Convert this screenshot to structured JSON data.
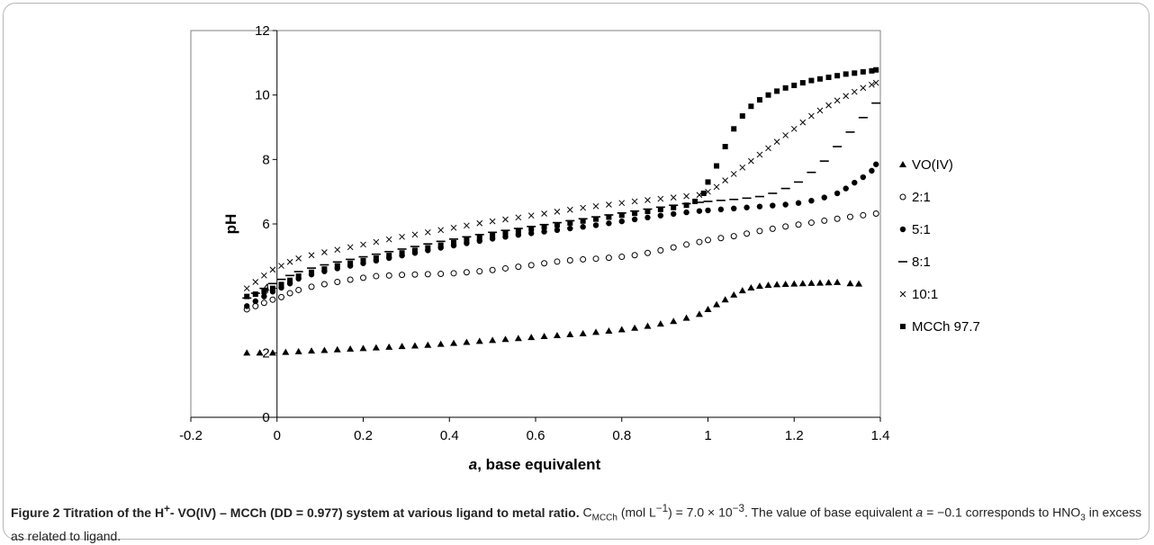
{
  "chart_data": {
    "type": "scatter",
    "xlabel_prefix": "a",
    "xlabel_rest": ", base equivalent",
    "ylabel": "pH",
    "xlim": [
      -0.2,
      1.4
    ],
    "ylim": [
      0,
      12
    ],
    "x_ticks": [
      "-0.2",
      "0",
      "0.2",
      "0.4",
      "0.6",
      "0.8",
      "1",
      "1.2",
      "1.4"
    ],
    "y_ticks": [
      "0",
      "2",
      "4",
      "6",
      "8",
      "10",
      "12"
    ],
    "grid": false,
    "legend_position": "right",
    "series": [
      {
        "name": "VO(IV)",
        "marker": "triangle",
        "x": [
          -0.07,
          -0.04,
          -0.01,
          0.02,
          0.05,
          0.08,
          0.11,
          0.14,
          0.17,
          0.2,
          0.23,
          0.26,
          0.29,
          0.32,
          0.35,
          0.38,
          0.41,
          0.44,
          0.47,
          0.5,
          0.53,
          0.56,
          0.59,
          0.62,
          0.65,
          0.68,
          0.71,
          0.74,
          0.77,
          0.8,
          0.83,
          0.86,
          0.89,
          0.92,
          0.95,
          0.98,
          1.0,
          1.02,
          1.04,
          1.06,
          1.08,
          1.1,
          1.12,
          1.14,
          1.16,
          1.18,
          1.2,
          1.22,
          1.24,
          1.26,
          1.28,
          1.3,
          1.33,
          1.35
        ],
        "y": [
          2.0,
          2.0,
          2.0,
          2.02,
          2.04,
          2.06,
          2.08,
          2.1,
          2.12,
          2.14,
          2.16,
          2.18,
          2.2,
          2.22,
          2.24,
          2.27,
          2.3,
          2.33,
          2.36,
          2.39,
          2.42,
          2.45,
          2.48,
          2.51,
          2.54,
          2.57,
          2.6,
          2.64,
          2.68,
          2.72,
          2.77,
          2.83,
          2.9,
          2.98,
          3.08,
          3.2,
          3.35,
          3.5,
          3.65,
          3.8,
          3.93,
          4.02,
          4.07,
          4.1,
          4.12,
          4.13,
          4.14,
          4.15,
          4.16,
          4.17,
          4.18,
          4.19,
          4.15,
          4.14
        ]
      },
      {
        "name": "2:1",
        "marker": "circle-open",
        "x": [
          -0.07,
          -0.05,
          -0.03,
          -0.01,
          0.01,
          0.03,
          0.05,
          0.08,
          0.11,
          0.14,
          0.17,
          0.2,
          0.23,
          0.26,
          0.29,
          0.32,
          0.35,
          0.38,
          0.41,
          0.44,
          0.47,
          0.5,
          0.53,
          0.56,
          0.59,
          0.62,
          0.65,
          0.68,
          0.71,
          0.74,
          0.77,
          0.8,
          0.83,
          0.86,
          0.89,
          0.92,
          0.95,
          0.98,
          1.0,
          1.03,
          1.06,
          1.09,
          1.12,
          1.15,
          1.18,
          1.21,
          1.24,
          1.27,
          1.3,
          1.33,
          1.36,
          1.39
        ],
        "y": [
          3.35,
          3.45,
          3.55,
          3.65,
          3.73,
          3.85,
          3.95,
          4.05,
          4.13,
          4.2,
          4.27,
          4.33,
          4.38,
          4.4,
          4.42,
          4.43,
          4.44,
          4.45,
          4.47,
          4.5,
          4.53,
          4.57,
          4.62,
          4.67,
          4.72,
          4.78,
          4.83,
          4.87,
          4.9,
          4.92,
          4.95,
          4.98,
          5.03,
          5.1,
          5.18,
          5.27,
          5.36,
          5.44,
          5.5,
          5.56,
          5.62,
          5.7,
          5.78,
          5.85,
          5.92,
          5.98,
          6.04,
          6.1,
          6.16,
          6.22,
          6.27,
          6.32
        ]
      },
      {
        "name": "5:1",
        "marker": "circle-filled",
        "x": [
          -0.07,
          -0.05,
          -0.03,
          -0.01,
          0.01,
          0.03,
          0.05,
          0.08,
          0.11,
          0.14,
          0.17,
          0.2,
          0.23,
          0.26,
          0.29,
          0.32,
          0.35,
          0.38,
          0.41,
          0.44,
          0.47,
          0.5,
          0.53,
          0.56,
          0.59,
          0.62,
          0.65,
          0.68,
          0.71,
          0.74,
          0.77,
          0.8,
          0.83,
          0.86,
          0.89,
          0.92,
          0.95,
          0.98,
          1.0,
          1.03,
          1.06,
          1.09,
          1.12,
          1.15,
          1.18,
          1.21,
          1.24,
          1.27,
          1.3,
          1.32,
          1.34,
          1.36,
          1.38,
          1.39
        ],
        "y": [
          3.45,
          3.6,
          3.75,
          3.9,
          4.02,
          4.15,
          4.3,
          4.43,
          4.53,
          4.62,
          4.7,
          4.78,
          4.86,
          4.94,
          5.02,
          5.1,
          5.18,
          5.26,
          5.33,
          5.4,
          5.47,
          5.54,
          5.6,
          5.66,
          5.71,
          5.76,
          5.81,
          5.86,
          5.91,
          5.96,
          6.02,
          6.08,
          6.14,
          6.2,
          6.26,
          6.31,
          6.36,
          6.4,
          6.42,
          6.45,
          6.48,
          6.51,
          6.54,
          6.57,
          6.6,
          6.65,
          6.72,
          6.82,
          6.95,
          7.1,
          7.28,
          7.45,
          7.65,
          7.85
        ]
      },
      {
        "name": "8:1",
        "marker": "dash",
        "x": [
          -0.07,
          -0.05,
          -0.03,
          -0.01,
          0.01,
          0.03,
          0.05,
          0.08,
          0.11,
          0.14,
          0.17,
          0.2,
          0.23,
          0.26,
          0.29,
          0.32,
          0.35,
          0.38,
          0.41,
          0.44,
          0.47,
          0.5,
          0.53,
          0.56,
          0.59,
          0.62,
          0.65,
          0.68,
          0.71,
          0.74,
          0.77,
          0.8,
          0.83,
          0.86,
          0.89,
          0.92,
          0.95,
          0.98,
          1.0,
          1.03,
          1.06,
          1.09,
          1.12,
          1.15,
          1.18,
          1.21,
          1.24,
          1.27,
          1.3,
          1.33,
          1.36,
          1.39
        ],
        "y": [
          3.7,
          3.85,
          4.0,
          4.15,
          4.28,
          4.4,
          4.52,
          4.63,
          4.73,
          4.82,
          4.9,
          4.98,
          5.06,
          5.14,
          5.22,
          5.3,
          5.38,
          5.46,
          5.53,
          5.6,
          5.67,
          5.74,
          5.8,
          5.86,
          5.92,
          5.98,
          6.04,
          6.1,
          6.16,
          6.22,
          6.28,
          6.34,
          6.4,
          6.46,
          6.52,
          6.58,
          6.63,
          6.67,
          6.7,
          6.73,
          6.76,
          6.8,
          6.85,
          6.95,
          7.1,
          7.3,
          7.6,
          7.95,
          8.4,
          8.85,
          9.3,
          9.75
        ]
      },
      {
        "name": "10:1",
        "marker": "cross",
        "x": [
          -0.07,
          -0.05,
          -0.03,
          -0.01,
          0.01,
          0.03,
          0.05,
          0.08,
          0.11,
          0.14,
          0.17,
          0.2,
          0.23,
          0.26,
          0.29,
          0.32,
          0.35,
          0.38,
          0.41,
          0.44,
          0.47,
          0.5,
          0.53,
          0.56,
          0.59,
          0.62,
          0.65,
          0.68,
          0.71,
          0.74,
          0.77,
          0.8,
          0.83,
          0.86,
          0.89,
          0.92,
          0.95,
          0.98,
          1.0,
          1.02,
          1.04,
          1.06,
          1.08,
          1.1,
          1.12,
          1.14,
          1.16,
          1.18,
          1.2,
          1.22,
          1.24,
          1.26,
          1.28,
          1.3,
          1.32,
          1.34,
          1.36,
          1.38,
          1.39
        ],
        "y": [
          4.0,
          4.2,
          4.4,
          4.58,
          4.7,
          4.82,
          4.93,
          5.03,
          5.12,
          5.2,
          5.28,
          5.36,
          5.44,
          5.52,
          5.6,
          5.67,
          5.74,
          5.81,
          5.88,
          5.95,
          6.02,
          6.08,
          6.14,
          6.2,
          6.26,
          6.32,
          6.38,
          6.44,
          6.5,
          6.55,
          6.6,
          6.65,
          6.7,
          6.74,
          6.78,
          6.82,
          6.86,
          6.9,
          7.0,
          7.15,
          7.35,
          7.55,
          7.75,
          7.95,
          8.15,
          8.35,
          8.55,
          8.75,
          8.95,
          9.15,
          9.35,
          9.52,
          9.68,
          9.83,
          9.97,
          10.1,
          10.22,
          10.32,
          10.38
        ]
      },
      {
        "name": "MCCh 97.7",
        "marker": "square",
        "x": [
          -0.07,
          -0.05,
          -0.03,
          -0.01,
          0.01,
          0.03,
          0.05,
          0.08,
          0.11,
          0.14,
          0.17,
          0.2,
          0.23,
          0.26,
          0.29,
          0.32,
          0.35,
          0.38,
          0.41,
          0.44,
          0.47,
          0.5,
          0.53,
          0.56,
          0.59,
          0.62,
          0.65,
          0.68,
          0.71,
          0.74,
          0.77,
          0.8,
          0.83,
          0.86,
          0.89,
          0.92,
          0.95,
          0.97,
          0.99,
          1.0,
          1.02,
          1.04,
          1.06,
          1.08,
          1.1,
          1.12,
          1.14,
          1.16,
          1.18,
          1.2,
          1.22,
          1.24,
          1.26,
          1.28,
          1.3,
          1.32,
          1.34,
          1.36,
          1.38,
          1.39
        ],
        "y": [
          3.75,
          3.82,
          3.9,
          4.0,
          4.12,
          4.25,
          4.38,
          4.5,
          4.6,
          4.7,
          4.78,
          4.86,
          4.94,
          5.02,
          5.1,
          5.18,
          5.26,
          5.34,
          5.42,
          5.5,
          5.57,
          5.64,
          5.71,
          5.78,
          5.85,
          5.91,
          5.97,
          6.03,
          6.09,
          6.15,
          6.21,
          6.27,
          6.33,
          6.39,
          6.45,
          6.51,
          6.58,
          6.7,
          6.95,
          7.3,
          7.8,
          8.4,
          8.95,
          9.35,
          9.65,
          9.85,
          10.0,
          10.12,
          10.22,
          10.3,
          10.38,
          10.45,
          10.5,
          10.55,
          10.6,
          10.65,
          10.68,
          10.72,
          10.75,
          10.78
        ]
      }
    ]
  },
  "caption": {
    "bold": "Figure 2 Titration of the H",
    "bold_sup": "+",
    "bold_rest": "- VO(IV) – MCCh (DD = 0.977) system at various ligand to metal ratio.",
    "c_label": " C",
    "c_sub": "MCCh",
    "c_unit_open": " (mol L",
    "c_unit_sup": "−1",
    "c_value": ") = 7.0 × 10",
    "c_value_sup": "−3",
    "text1": ". The value of base equivalent ",
    "a_italic": "a",
    "text2": " = −0.1 corresponds to HNO",
    "hno3_sub": "3",
    "text3": " in excess as related to ligand."
  }
}
